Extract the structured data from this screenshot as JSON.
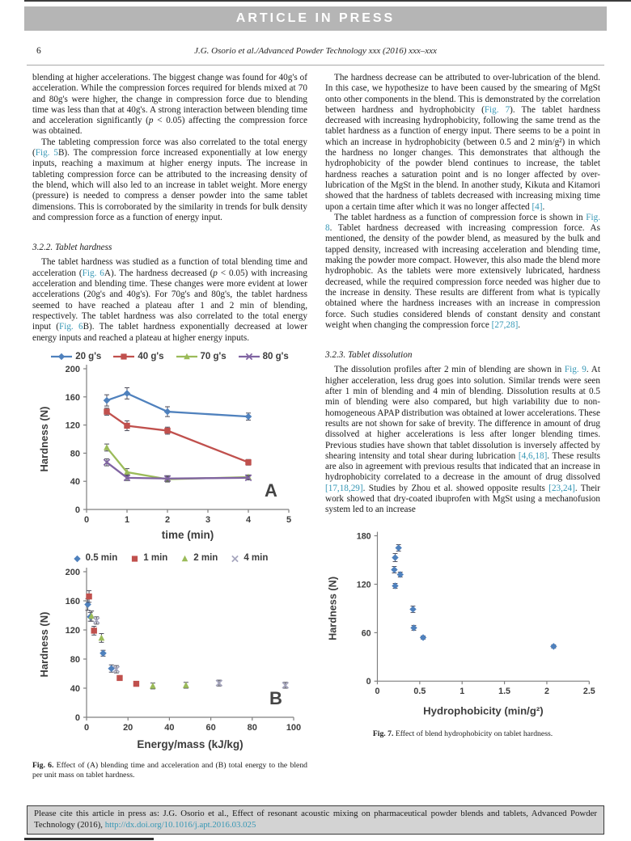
{
  "banner": {
    "label": "ARTICLE IN PRESS"
  },
  "header": {
    "page_number": "6",
    "running_head": "J.G. Osorio et al./Advanced Powder Technology xxx (2016) xxx–xxx"
  },
  "left_column": {
    "para1_segments": [
      {
        "t": "blending at higher accelerations. The biggest change was found for 40g's of acceleration. While the compression forces required for blends mixed at 70 and 80g's were higher, the change in compression force due to blending time was less than that at 40g's. A strong interaction between blending time and acceleration significantly ("
      },
      {
        "t": "p",
        "s": "i"
      },
      {
        "t": " < 0.05) affecting the compression force was obtained."
      }
    ],
    "para2_segments": [
      {
        "t": "The tableting compression force was also correlated to the total energy ("
      },
      {
        "t": "Fig. 5",
        "s": "link"
      },
      {
        "t": "B). The compression force increased exponentially at low energy inputs, reaching a maximum at higher energy inputs. The increase in tableting compression force can be attributed to the increasing density of the blend, which will also led to an increase in tablet weight. More energy (pressure) is needed to compress a denser powder into the same tablet dimensions. This is corroborated by the similarity in trends for bulk density and compression force as a function of energy input."
      }
    ],
    "section_heading": "3.2.2. Tablet hardness",
    "section_para_segments": [
      {
        "t": "The tablet hardness was studied as a function of total blending time and acceleration ("
      },
      {
        "t": "Fig. 6",
        "s": "link"
      },
      {
        "t": "A). The hardness decreased ("
      },
      {
        "t": "p",
        "s": "i"
      },
      {
        "t": " < 0.05) with increasing acceleration and blending time. These changes were more evident at lower accelerations (20g's and 40g's). For 70g's and 80g's, the tablet hardness seemed to have reached a plateau after 1 and 2 min of blending, respectively. The tablet hardness was also correlated to the total energy input ("
      },
      {
        "t": "Fig. 6",
        "s": "link"
      },
      {
        "t": "B). The tablet hardness exponentially decreased at lower energy inputs and reached a plateau at higher energy inputs."
      }
    ]
  },
  "right_column": {
    "para1_segments": [
      {
        "t": "The hardness decrease can be attributed to over-lubrication of the blend. In this case, we hypothesize to have been caused by the smearing of MgSt onto other components in the blend. This is demonstrated by the correlation between hardness and hydrophobicity ("
      },
      {
        "t": "Fig. 7",
        "s": "link"
      },
      {
        "t": "). The tablet hardness decreased with increasing hydrophobicity, following the same trend as the tablet hardness as a function of energy input. There seems to be a point in which an increase in hydrophobicity (between 0.5 and 2 min/g²) in which the hardness no longer changes. This demonstrates that although the hydrophobicity of the powder blend continues to increase, the tablet hardness reaches a saturation point and is no longer affected by over-lubrication of the MgSt in the blend. In another study, Kikuta and Kitamori showed that the hardness of tablets decreased with increasing mixing time upon a certain time after which it was no longer affected "
      },
      {
        "t": "[4]",
        "s": "link"
      },
      {
        "t": "."
      }
    ],
    "para2_segments": [
      {
        "t": "The tablet hardness as a function of compression force is shown in "
      },
      {
        "t": "Fig. 8",
        "s": "link"
      },
      {
        "t": ". Tablet hardness decreased with increasing compression force. As mentioned, the density of the powder blend, as measured by the bulk and tapped density, increased with increasing acceleration and blending time, making the powder more compact. However, this also made the blend more hydrophobic. As the tablets were more extensively lubricated, hardness decreased, while the required compression force needed was higher due to the increase in density. These results are different from what is typically obtained where the hardness increases with an increase in compression force. Such studies considered blends of constant density and constant weight when changing the compression force "
      },
      {
        "t": "[27,28]",
        "s": "link"
      },
      {
        "t": "."
      }
    ],
    "section_heading": "3.2.3. Tablet dissolution",
    "section_para_segments": [
      {
        "t": "The dissolution profiles after 2 min of blending are shown in "
      },
      {
        "t": "Fig. 9",
        "s": "link"
      },
      {
        "t": ". At higher acceleration, less drug goes into solution. Similar trends were seen after 1 min of blending and 4 min of blending. Dissolution results at 0.5 min of blending were also compared, but high variability due to non-homogeneous APAP distribution was obtained at lower accelerations. These results are not shown for sake of brevity. The difference in amount of drug dissolved at higher accelerations is less after longer blending times. Previous studies have shown that tablet dissolution is inversely affected by shearing intensity and total shear during lubrication "
      },
      {
        "t": "[4,6,18]",
        "s": "link"
      },
      {
        "t": ". These results are also in agreement with previous results that indicated that an increase in hydrophobicity correlated to a decrease in the amount of drug dissolved "
      },
      {
        "t": "[17,18,29]",
        "s": "link"
      },
      {
        "t": ". Studies by Zhou et al. showed opposite results "
      },
      {
        "t": "[23,24]",
        "s": "link"
      },
      {
        "t": ". Their work showed that dry-coated ibuprofen with MgSt using a mechanofusion system led to an increase"
      }
    ]
  },
  "figures": {
    "fig6_caption_segments": [
      {
        "t": "Fig. 6.",
        "s": "bold"
      },
      {
        "t": " Effect of (A) blending time and acceleration and (B) total energy to the blend per unit mass on tablet hardness."
      }
    ],
    "fig7_caption_segments": [
      {
        "t": "Fig. 7.",
        "s": "bold"
      },
      {
        "t": " Effect of blend hydrophobicity on tablet hardness."
      }
    ]
  },
  "footer": {
    "citation_prefix": "Please cite this article in press as: J.G. Osorio et al., Effect of resonant acoustic mixing on pharmaceutical powder blends and tablets, Advanced Powder Technology (2016), ",
    "doi": "http://dx.doi.org/10.1016/j.apt.2016.03.025"
  },
  "colors": {
    "banner_bg": "#b5b5b5",
    "link_teal": "#3697b5",
    "series_blue": "#4F81BD",
    "series_red": "#C0504D",
    "series_green": "#9BBB59",
    "series_purple": "#8064A2",
    "series_gray": "#A6A6BE",
    "error_bar": "#4d4d5c",
    "footer_bg": "#d3d3d3"
  },
  "chart_data": [
    {
      "id": "fig6a",
      "type": "line",
      "panel_label": "A",
      "xlabel": "time (min)",
      "ylabel": "Hardness (N)",
      "xlim": [
        0,
        5
      ],
      "xticks": [
        0,
        1,
        2,
        3,
        4,
        5
      ],
      "ylim": [
        0,
        200
      ],
      "yticks": [
        0,
        40,
        80,
        120,
        160,
        200
      ],
      "legend_position": "top",
      "x": [
        0.5,
        1,
        2,
        4
      ],
      "series": [
        {
          "name": "20 g's",
          "color": "#4F81BD",
          "marker": "diamond",
          "values": [
            155,
            165,
            139,
            132
          ],
          "err": [
            8,
            8,
            7,
            5
          ]
        },
        {
          "name": "40 g's",
          "color": "#C0504D",
          "marker": "square",
          "values": [
            139,
            119,
            112,
            67
          ],
          "err": [
            5,
            7,
            5,
            4
          ]
        },
        {
          "name": "70 g's",
          "color": "#9BBB59",
          "marker": "triangle",
          "values": [
            88,
            53,
            43,
            46
          ],
          "err": [
            5,
            5,
            4,
            3
          ]
        },
        {
          "name": "80 g's",
          "color": "#8064A2",
          "marker": "x",
          "values": [
            67,
            45,
            44,
            45
          ],
          "err": [
            5,
            4,
            4,
            3
          ]
        }
      ]
    },
    {
      "id": "fig6b",
      "type": "scatter",
      "panel_label": "B",
      "xlabel": "Energy/mass (kJ/kg)",
      "ylabel": "Hardness (N)",
      "xlim": [
        0,
        100
      ],
      "xticks": [
        0,
        20,
        40,
        60,
        80,
        100
      ],
      "ylim": [
        0,
        200
      ],
      "yticks": [
        0,
        40,
        80,
        120,
        160,
        200
      ],
      "legend_position": "top",
      "series": [
        {
          "name": "0.5 min",
          "color": "#4F81BD",
          "marker": "diamond",
          "points": [
            [
              0.6,
              155,
              8
            ],
            [
              1.8,
              138,
              6
            ],
            [
              8,
              88,
              4
            ],
            [
              12,
              67,
              5
            ]
          ]
        },
        {
          "name": "1 min",
          "color": "#C0504D",
          "marker": "square",
          "points": [
            [
              1.2,
              166,
              8
            ],
            [
              3.6,
              119,
              6
            ],
            [
              16,
              54,
              3
            ],
            [
              24,
              46,
              3
            ]
          ]
        },
        {
          "name": "2 min",
          "color": "#9BBB59",
          "marker": "triangle",
          "points": [
            [
              2.4,
              139,
              7
            ],
            [
              7.2,
              109,
              6
            ],
            [
              32,
              43,
              4
            ],
            [
              48,
              44,
              4
            ]
          ]
        },
        {
          "name": "4 min",
          "color": "#A6A6BE",
          "marker": "x",
          "points": [
            [
              4.8,
              133,
              5
            ],
            [
              14.4,
              66,
              5
            ],
            [
              64,
              47,
              4
            ],
            [
              96,
              44,
              4
            ]
          ]
        }
      ]
    },
    {
      "id": "fig7",
      "type": "scatter",
      "panel_label": "",
      "xlabel": "Hydrophobicity  (min/g²)",
      "ylabel": "Hardness (N)",
      "xlim": [
        0,
        2.5
      ],
      "xticks": [
        0,
        0.5,
        1,
        1.5,
        2,
        2.5
      ],
      "ylim": [
        0,
        180
      ],
      "yticks": [
        0,
        60,
        120,
        180
      ],
      "legend_position": "none",
      "series": [
        {
          "name": "hardness",
          "color": "#4F81BD",
          "marker": "diamond",
          "points": [
            [
              0.25,
              165,
              4
            ],
            [
              0.21,
              153,
              5
            ],
            [
              0.2,
              138,
              4
            ],
            [
              0.27,
              132,
              3
            ],
            [
              0.21,
              118,
              3
            ],
            [
              0.42,
              89,
              4
            ],
            [
              0.43,
              66,
              3
            ],
            [
              0.54,
              54,
              2
            ],
            [
              2.08,
              43,
              2
            ]
          ]
        }
      ]
    }
  ]
}
